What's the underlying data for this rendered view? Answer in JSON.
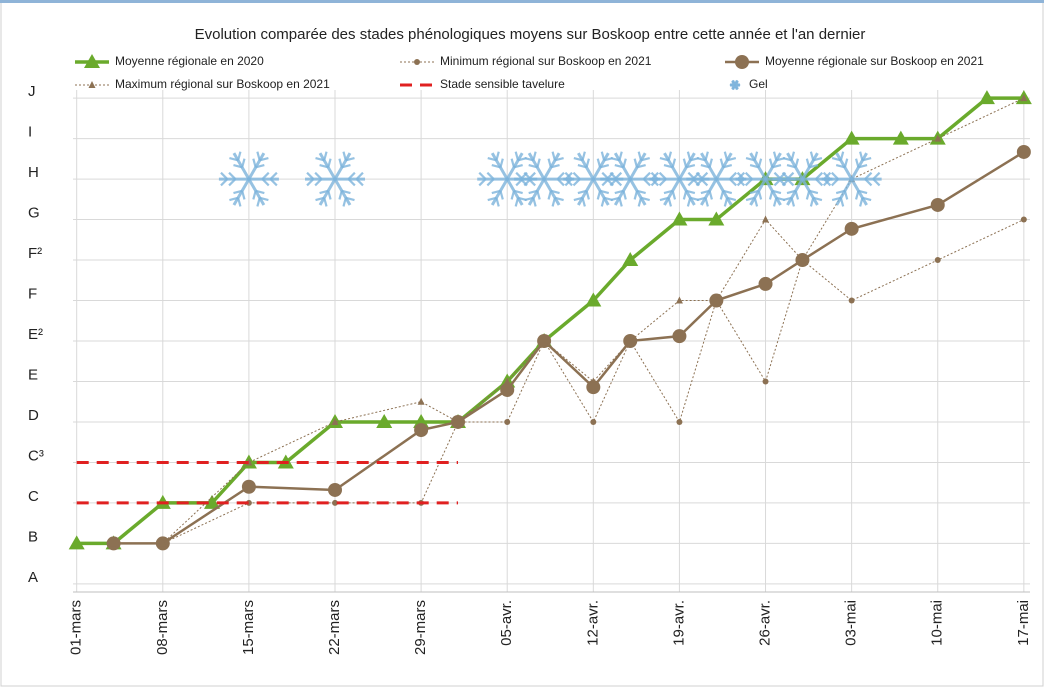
{
  "chart_data": {
    "type": "line",
    "title": "Evolution comparée des stades phénologiques moyens sur Boskoop entre cette année et l'an dernier",
    "xlim": [
      -0.3,
      77.5
    ],
    "xticks": [
      {
        "value": 0,
        "label": "01-mars"
      },
      {
        "value": 7,
        "label": "08-mars"
      },
      {
        "value": 14,
        "label": "15-mars"
      },
      {
        "value": 21,
        "label": "22-mars"
      },
      {
        "value": 28,
        "label": "29-mars"
      },
      {
        "value": 35,
        "label": "05-avr."
      },
      {
        "value": 42,
        "label": "12-avr."
      },
      {
        "value": 49,
        "label": "19-avr."
      },
      {
        "value": 56,
        "label": "26-avr."
      },
      {
        "value": 63,
        "label": "03-mai"
      },
      {
        "value": 70,
        "label": "10-mai"
      },
      {
        "value": 77,
        "label": "17-mai"
      }
    ],
    "ylim": [
      0.8,
      13.2
    ],
    "yticks": [
      {
        "value": 1,
        "label": "A"
      },
      {
        "value": 2,
        "label": "B"
      },
      {
        "value": 3,
        "label": "C"
      },
      {
        "value": 4,
        "label": "C³"
      },
      {
        "value": 5,
        "label": "D"
      },
      {
        "value": 6,
        "label": "E"
      },
      {
        "value": 7,
        "label": "E²"
      },
      {
        "value": 8,
        "label": "F"
      },
      {
        "value": 9,
        "label": "F²"
      },
      {
        "value": 10,
        "label": "G"
      },
      {
        "value": 11,
        "label": "H"
      },
      {
        "value": 12,
        "label": "I"
      },
      {
        "value": 13,
        "label": "J"
      }
    ],
    "grid": true,
    "series": [
      {
        "name": "Moyenne régionale en 2020",
        "color": "#6aaa2c",
        "style": "solid",
        "width": 3.5,
        "marker": "triangle",
        "x": [
          0,
          3,
          7,
          11,
          14,
          17,
          21,
          25,
          28,
          31,
          35,
          38,
          42,
          45,
          49,
          52,
          56,
          59,
          63,
          67,
          70,
          74,
          77
        ],
        "values": [
          2,
          2,
          3,
          3,
          4,
          4,
          5,
          5,
          5,
          5,
          6,
          7,
          8,
          9,
          10,
          10,
          11,
          11,
          12,
          12,
          12,
          13,
          13
        ]
      },
      {
        "name": "Minimum régional sur Boskoop en 2021",
        "color": "#8c7153",
        "style": "dotted",
        "width": 1,
        "marker": "dot",
        "x": [
          3,
          7,
          14,
          21,
          28,
          31,
          35,
          38,
          42,
          45,
          49,
          52,
          56,
          59,
          63,
          70,
          77
        ],
        "values": [
          2,
          2,
          3,
          3,
          3,
          5,
          5,
          7,
          5,
          7,
          5,
          8,
          6,
          9,
          8,
          9,
          10
        ]
      },
      {
        "name": "Moyenne régionale sur Boskoop en 2021",
        "color": "#8c7153",
        "style": "solid",
        "width": 2.5,
        "marker": "circle",
        "x": [
          3,
          7,
          14,
          21,
          28,
          31,
          35,
          38,
          42,
          45,
          49,
          52,
          56,
          59,
          63,
          70,
          77
        ],
        "values": [
          2,
          2,
          3.4,
          3.32,
          4.8,
          5,
          5.79,
          7,
          5.86,
          7,
          7.12,
          8,
          8.41,
          9,
          9.77,
          10.36,
          11.67
        ]
      },
      {
        "name": "Maximum régional sur Boskoop en 2021",
        "color": "#8c7153",
        "style": "dotted",
        "width": 1,
        "marker": "small-triangle",
        "x": [
          3,
          7,
          14,
          21,
          28,
          31,
          35,
          38,
          42,
          45,
          49,
          52,
          56,
          59,
          63,
          70,
          77
        ],
        "values": [
          2,
          2,
          4,
          5,
          5.5,
          5,
          6,
          7,
          6,
          7,
          8,
          8,
          10,
          9,
          11,
          12,
          13
        ]
      },
      {
        "name": "Stade sensible tavelure",
        "color": "#e02020",
        "style": "dashed",
        "width": 3,
        "marker": "none",
        "kind": "hline",
        "span": [
          0,
          31
        ],
        "values": [
          3,
          4
        ]
      },
      {
        "name": "Gel",
        "color": "#7db4dc",
        "style": "none",
        "width": 0,
        "marker": "snowflake",
        "x": [
          14,
          21,
          35,
          38,
          42,
          45,
          49,
          52,
          56,
          59,
          63
        ],
        "values": [
          11,
          11,
          11,
          11,
          11,
          11,
          11,
          11,
          11,
          11,
          11
        ]
      }
    ]
  }
}
